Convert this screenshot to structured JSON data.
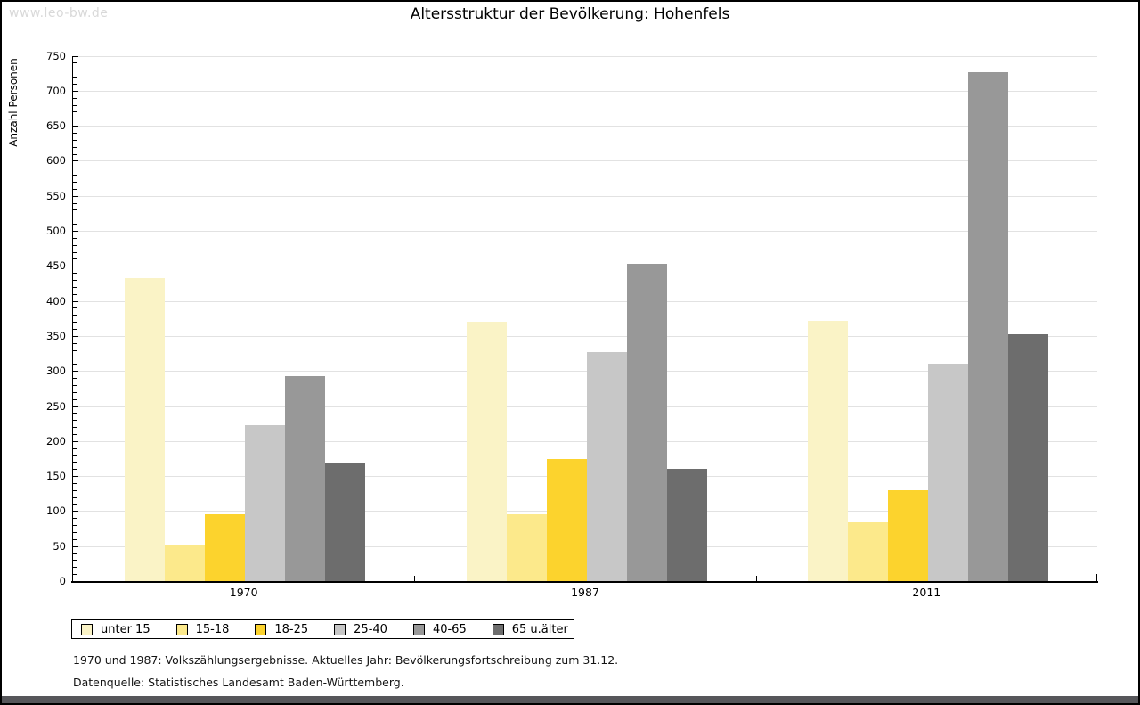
{
  "watermark": "www.leo-bw.de",
  "title": "Altersstruktur der Bevölkerung: Hohenfels",
  "y_axis": {
    "label": "Anzahl Personen",
    "min": 0,
    "max": 750,
    "major_step": 50,
    "minor_step": 10
  },
  "footnotes": [
    "1970 und 1987: Volkszählungsergebnisse. Aktuelles Jahr: Bevölkerungsfortschreibung zum 31.12.",
    "Datenquelle: Statistisches Landesamt Baden-Württemberg."
  ],
  "chart_data": {
    "type": "bar",
    "title": "Altersstruktur der Bevölkerung: Hohenfels",
    "xlabel": "",
    "ylabel": "Anzahl Personen",
    "ylim": [
      0,
      750
    ],
    "ytick_step": 50,
    "grid": true,
    "legend_position": "bottom-left",
    "categories": [
      "1970",
      "1987",
      "2011"
    ],
    "series": [
      {
        "name": "unter 15",
        "color": "#faf3c6",
        "values": [
          432,
          370,
          372
        ]
      },
      {
        "name": "15-18",
        "color": "#fce98b",
        "values": [
          52,
          95,
          84
        ]
      },
      {
        "name": "18-25",
        "color": "#fcd32d",
        "values": [
          96,
          174,
          130
        ]
      },
      {
        "name": "25-40",
        "color": "#c7c7c7",
        "values": [
          223,
          327,
          310
        ]
      },
      {
        "name": "40-65",
        "color": "#989898",
        "values": [
          292,
          453,
          726
        ]
      },
      {
        "name": "65 u.älter",
        "color": "#6d6d6d",
        "values": [
          168,
          160,
          352
        ]
      }
    ]
  }
}
